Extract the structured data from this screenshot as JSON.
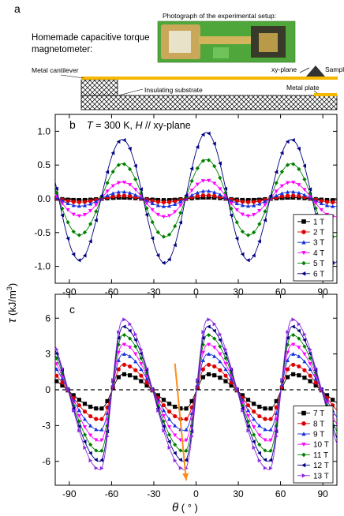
{
  "panel_a": {
    "letter": "a",
    "title_line1": "Homemade capacitive torque",
    "title_line2": "magnetometer:",
    "photo_caption": "Photograph of the experimental setup:",
    "label_cantilever": "Metal cantilever",
    "label_xy_plane": "xy-plane",
    "label_sample": "Sample",
    "label_substrate": "Insulating substrate",
    "label_plate": "Metal plate",
    "colors": {
      "cantilever": "#F5B800",
      "plate": "#F5B800",
      "photo": "#4FA63A",
      "hatch": "#000000"
    }
  },
  "chart_data": [
    {
      "type": "line",
      "panel_letter": "b",
      "condition_T": "T",
      "condition_rest": " = 300 K, ",
      "condition_H": "H",
      "condition_plane": "  //  xy-plane",
      "ylabel": "τ (kJ/m³)",
      "xlim": [
        -100,
        100
      ],
      "ylim": [
        -1.25,
        1.25
      ],
      "xticks": [
        -90,
        -60,
        -30,
        0,
        30,
        60,
        90
      ],
      "yticks": [
        -1.0,
        -0.5,
        0.0,
        0.5,
        1.0
      ],
      "ytick_labels": [
        "-1.0",
        "-0.5",
        "0.0",
        "0.5",
        "1.0"
      ],
      "series": [
        {
          "name": "1 T",
          "color": "#000000",
          "marker": "square",
          "amplitude": 0.02
        },
        {
          "name": "2 T",
          "color": "#E00000",
          "marker": "circle",
          "amplitude": 0.05
        },
        {
          "name": "3 T",
          "color": "#1530E0",
          "marker": "triangle-up",
          "amplitude": 0.11
        },
        {
          "name": "4 T",
          "color": "#FF00FF",
          "marker": "triangle-down",
          "amplitude": 0.26
        },
        {
          "name": "5 T",
          "color": "#008000",
          "marker": "diamond",
          "amplitude": 0.55
        },
        {
          "name": "6 T",
          "color": "#000080",
          "marker": "triangle-left",
          "amplitude": 0.93
        }
      ]
    },
    {
      "type": "line",
      "panel_letter": "c",
      "ylabel": "τ (kJ/m³)",
      "xlabel_symbol": "θ",
      "xlabel_unit": " ( ° )",
      "xlim": [
        -100,
        100
      ],
      "ylim": [
        -8,
        8
      ],
      "xticks": [
        -90,
        -60,
        -30,
        0,
        30,
        60,
        90
      ],
      "yticks": [
        -6,
        -3,
        0,
        3,
        6
      ],
      "ytick_labels": [
        "-6",
        "-3",
        "0",
        "3",
        "6"
      ],
      "series": [
        {
          "name": "7 T",
          "color": "#000000",
          "marker": "square",
          "amplitude": 1.3,
          "dip": 1.6
        },
        {
          "name": "8 T",
          "color": "#E00000",
          "marker": "circle",
          "amplitude": 2.1,
          "dip": 2.5
        },
        {
          "name": "9 T",
          "color": "#1530E0",
          "marker": "triangle-up",
          "amplitude": 3.0,
          "dip": 3.4
        },
        {
          "name": "10 T",
          "color": "#FF00FF",
          "marker": "triangle-down",
          "amplitude": 3.8,
          "dip": 4.3
        },
        {
          "name": "11 T",
          "color": "#008000",
          "marker": "diamond",
          "amplitude": 4.6,
          "dip": 5.2
        },
        {
          "name": "12 T",
          "color": "#000080",
          "marker": "triangle-left",
          "amplitude": 5.3,
          "dip": 6.0
        },
        {
          "name": "13 T",
          "color": "#8A2BE2",
          "marker": "triangle-right",
          "amplitude": 5.9,
          "dip": 6.7
        }
      ],
      "annotation_arrow": {
        "color": "#FF8C1A",
        "from": [
          -15,
          2.2
        ],
        "to": [
          -7,
          -7.6
        ]
      }
    }
  ],
  "shared_axis": {
    "ylabel_symbol": "τ",
    "ylabel_unit": " (kJ/m",
    "ylabel_sup": "3",
    "ylabel_close": ")"
  }
}
